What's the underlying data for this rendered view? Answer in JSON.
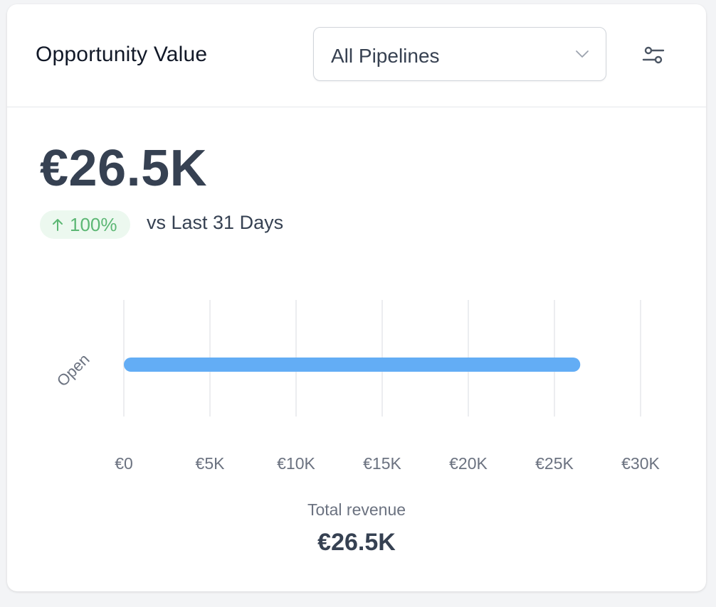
{
  "widget": {
    "title": "Opportunity Value",
    "pipeline_select": {
      "value": "All Pipelines"
    },
    "filter_icon": "filter-sliders-icon",
    "summary": {
      "value": "€26.5K",
      "change": "100%",
      "change_direction": "up",
      "comparison": "vs Last 31 Days"
    },
    "total": {
      "label": "Total revenue",
      "value": "€26.5K"
    }
  },
  "colors": {
    "bar": "#63adf5",
    "badge_bg": "#ecf8ef",
    "badge_text": "#5cb774",
    "grid": "#e5e7eb"
  },
  "chart_data": {
    "type": "bar",
    "orientation": "horizontal",
    "categories": [
      "Open"
    ],
    "values": [
      26500
    ],
    "xlim": [
      0,
      30000
    ],
    "xticks": [
      0,
      5000,
      10000,
      15000,
      20000,
      25000,
      30000
    ],
    "xtick_labels": [
      "€0",
      "€5K",
      "€10K",
      "€15K",
      "€20K",
      "€25K",
      "€30K"
    ],
    "grid": true,
    "legend": "none"
  }
}
